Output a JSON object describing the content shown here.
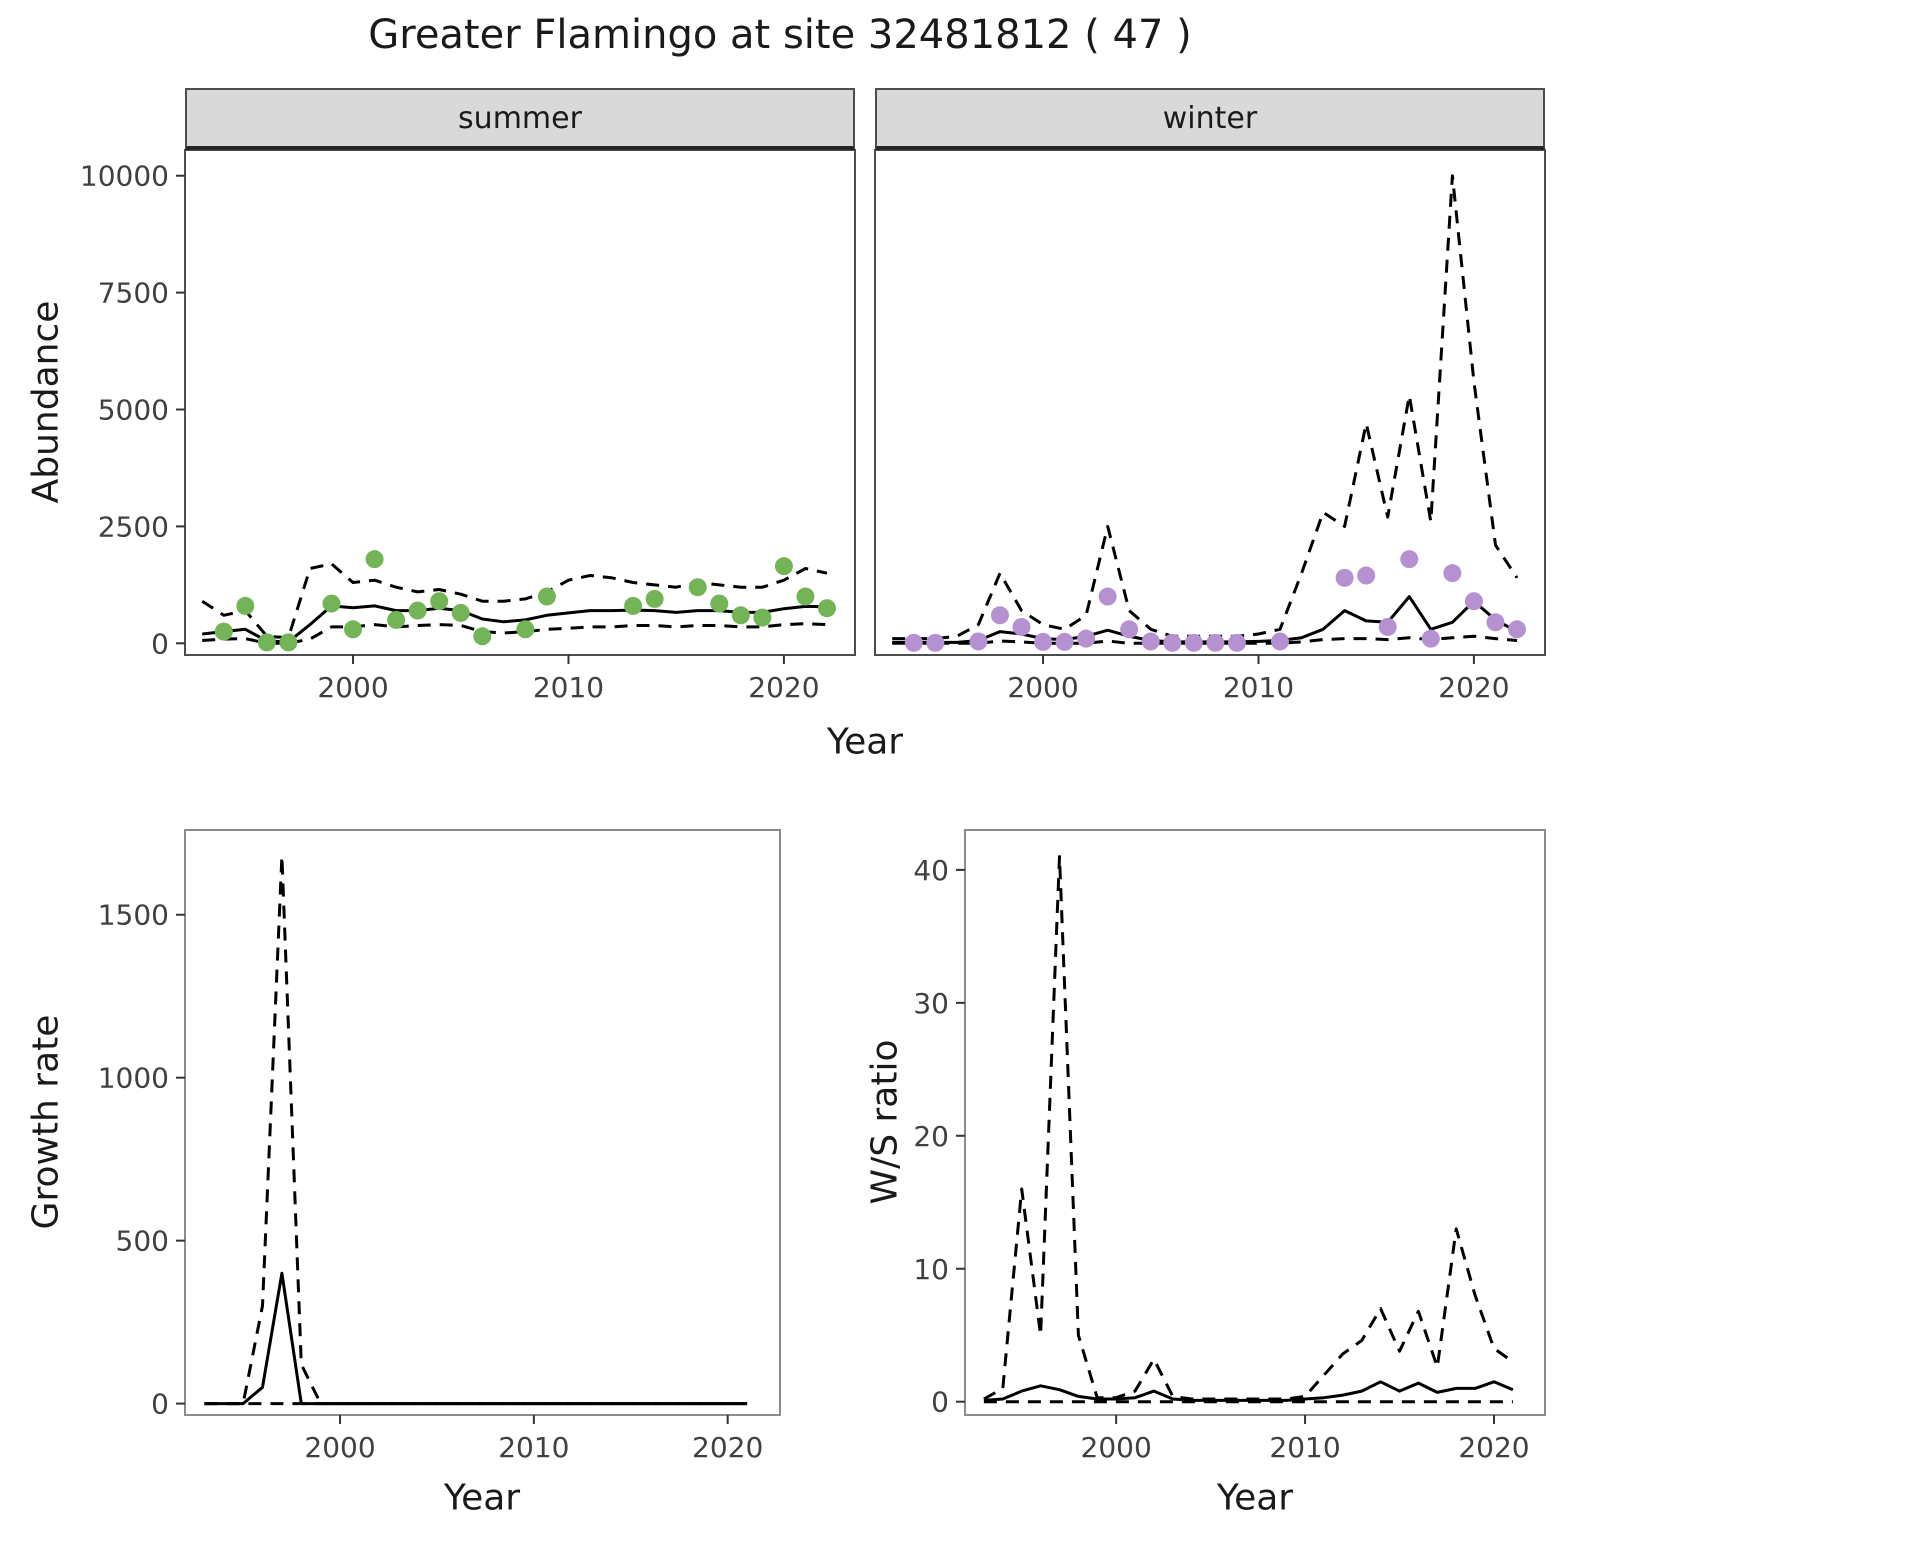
{
  "chart_data": {
    "type": "line",
    "title": "Greater Flamingo at site 32481812 ( 47 )",
    "facets": {
      "summer": "summer",
      "winter": "winter"
    },
    "axis_labels": {
      "abundance": "Abundance",
      "year": "Year",
      "growth": "Growth rate",
      "ws": "W/S ratio"
    },
    "colors": {
      "summer_points": "#72b456",
      "winter_points": "#b691d2",
      "line": "#000000",
      "strip_background": "#d9d9d9"
    },
    "panels": [
      {
        "id": "abundance_summer",
        "facet": "summer",
        "xlabel": "Year",
        "ylabel": "Abundance",
        "xlim": [
          1992.2,
          2023.3
        ],
        "ylim": [
          -250,
          10550
        ],
        "xticks": [
          2000,
          2010,
          2020
        ],
        "yticks": [
          0,
          2500,
          5000,
          7500,
          10000
        ],
        "series": [
          {
            "name": "lower_ci",
            "style": "dashed",
            "x": [
              1993,
              1994,
              1995,
              1996,
              1997,
              1998,
              1999,
              2000,
              2001,
              2002,
              2003,
              2004,
              2005,
              2006,
              2007,
              2008,
              2009,
              2010,
              2011,
              2012,
              2013,
              2014,
              2015,
              2016,
              2017,
              2018,
              2019,
              2020,
              2021,
              2022
            ],
            "y": [
              60,
              90,
              100,
              0,
              0,
              90,
              350,
              350,
              400,
              350,
              380,
              400,
              380,
              250,
              220,
              250,
              300,
              320,
              350,
              350,
              380,
              380,
              350,
              380,
              380,
              350,
              350,
              400,
              420,
              400
            ]
          },
          {
            "name": "upper_ci",
            "style": "dashed",
            "x": [
              1993,
              1994,
              1995,
              1996,
              1997,
              1998,
              1999,
              2000,
              2001,
              2002,
              2003,
              2004,
              2005,
              2006,
              2007,
              2008,
              2009,
              2010,
              2011,
              2012,
              2013,
              2014,
              2015,
              2016,
              2017,
              2018,
              2019,
              2020,
              2021,
              2022
            ],
            "y": [
              900,
              600,
              700,
              150,
              120,
              1600,
              1700,
              1300,
              1350,
              1200,
              1100,
              1150,
              1050,
              900,
              900,
              950,
              1100,
              1350,
              1450,
              1400,
              1300,
              1250,
              1200,
              1300,
              1250,
              1200,
              1200,
              1350,
              1600,
              1500
            ]
          },
          {
            "name": "model_fit",
            "style": "solid",
            "x": [
              1993,
              1994,
              1995,
              1996,
              1997,
              1998,
              1999,
              2000,
              2001,
              2002,
              2003,
              2004,
              2005,
              2006,
              2007,
              2008,
              2009,
              2010,
              2011,
              2012,
              2013,
              2014,
              2015,
              2016,
              2017,
              2018,
              2019,
              2020,
              2021,
              2022
            ],
            "y": [
              200,
              250,
              300,
              50,
              30,
              400,
              800,
              760,
              800,
              700,
              700,
              750,
              700,
              520,
              460,
              500,
              600,
              650,
              700,
              700,
              710,
              700,
              660,
              700,
              700,
              660,
              660,
              740,
              790,
              780
            ]
          },
          {
            "name": "observed_counts",
            "style": "points",
            "color": "#72b456",
            "x": [
              1994,
              1995,
              1996,
              1997,
              1999,
              2000,
              2001,
              2002,
              2003,
              2004,
              2005,
              2006,
              2008,
              2009,
              2013,
              2014,
              2016,
              2017,
              2018,
              2019,
              2020,
              2021,
              2022
            ],
            "y": [
              250,
              800,
              20,
              20,
              850,
              300,
              1800,
              500,
              700,
              900,
              650,
              150,
              300,
              1000,
              800,
              950,
              1200,
              850,
              600,
              550,
              1650,
              1000,
              750
            ]
          }
        ]
      },
      {
        "id": "abundance_winter",
        "facet": "winter",
        "xlabel": "Year",
        "ylabel": "Abundance",
        "xlim": [
          1992.2,
          2023.3
        ],
        "ylim": [
          -250,
          10550
        ],
        "xticks": [
          2000,
          2010,
          2020
        ],
        "yticks": [
          0,
          2500,
          5000,
          7500,
          10000
        ],
        "series": [
          {
            "name": "lower_ci",
            "style": "dashed",
            "x": [
              1993,
              1994,
              1995,
              1996,
              1997,
              1998,
              1999,
              2000,
              2001,
              2002,
              2003,
              2004,
              2005,
              2006,
              2007,
              2008,
              2009,
              2010,
              2011,
              2012,
              2013,
              2014,
              2015,
              2016,
              2017,
              2018,
              2019,
              2020,
              2021,
              2022
            ],
            "y": [
              0,
              0,
              0,
              0,
              0,
              50,
              30,
              0,
              0,
              0,
              50,
              0,
              0,
              0,
              0,
              0,
              0,
              0,
              0,
              30,
              80,
              100,
              100,
              80,
              120,
              80,
              120,
              150,
              100,
              60
            ]
          },
          {
            "name": "upper_ci",
            "style": "dashed",
            "x": [
              1993,
              1994,
              1995,
              1996,
              1997,
              1998,
              1999,
              2000,
              2001,
              2002,
              2003,
              2004,
              2005,
              2006,
              2007,
              2008,
              2009,
              2010,
              2011,
              2012,
              2013,
              2014,
              2015,
              2016,
              2017,
              2018,
              2019,
              2020,
              2021,
              2022
            ],
            "y": [
              100,
              100,
              100,
              150,
              400,
              1500,
              700,
              400,
              300,
              600,
              2500,
              700,
              300,
              150,
              150,
              150,
              150,
              200,
              300,
              1500,
              2800,
              2500,
              4700,
              2700,
              5300,
              2600,
              10000,
              5600,
              2100,
              1400
            ]
          },
          {
            "name": "model_fit",
            "style": "solid",
            "x": [
              1993,
              1994,
              1995,
              1996,
              1997,
              1998,
              1999,
              2000,
              2001,
              2002,
              2003,
              2004,
              2005,
              2006,
              2007,
              2008,
              2009,
              2010,
              2011,
              2012,
              2013,
              2014,
              2015,
              2016,
              2017,
              2018,
              2019,
              2020,
              2021,
              2022
            ],
            "y": [
              20,
              20,
              20,
              20,
              60,
              250,
              200,
              100,
              80,
              150,
              280,
              150,
              60,
              30,
              30,
              30,
              30,
              40,
              60,
              120,
              300,
              700,
              480,
              450,
              1000,
              300,
              450,
              900,
              500,
              250
            ]
          },
          {
            "name": "observed_counts",
            "style": "points",
            "color": "#b691d2",
            "x": [
              1994,
              1995,
              1997,
              1998,
              1999,
              2000,
              2001,
              2002,
              2003,
              2004,
              2005,
              2006,
              2007,
              2008,
              2009,
              2011,
              2014,
              2015,
              2016,
              2017,
              2018,
              2019,
              2020,
              2021,
              2022
            ],
            "y": [
              10,
              10,
              40,
              600,
              350,
              30,
              30,
              100,
              1000,
              300,
              40,
              10,
              10,
              10,
              10,
              40,
              1400,
              1450,
              350,
              1800,
              100,
              1500,
              900,
              450,
              300
            ]
          }
        ]
      },
      {
        "id": "growth_rate",
        "facet": null,
        "xlabel": "Year",
        "ylabel": "Growth rate",
        "xlim": [
          1992.0,
          2022.7
        ],
        "ylim": [
          -35,
          1760
        ],
        "xticks": [
          2000,
          2010,
          2020
        ],
        "yticks": [
          0,
          500,
          1000,
          1500
        ],
        "series": [
          {
            "name": "lower_ci",
            "style": "dashed",
            "x": [
              1993,
              1994,
              1995,
              1996,
              1997,
              1998,
              1999,
              2000,
              2001,
              2002,
              2003,
              2004,
              2005,
              2006,
              2007,
              2008,
              2009,
              2010,
              2011,
              2012,
              2013,
              2014,
              2015,
              2016,
              2017,
              2018,
              2019,
              2020,
              2021
            ],
            "y": [
              0,
              0,
              0,
              0,
              0,
              0,
              0,
              0,
              0,
              0,
              0,
              0,
              0,
              0,
              0,
              0,
              0,
              0,
              0,
              0,
              0,
              0,
              0,
              0,
              0,
              0,
              0,
              0,
              0
            ]
          },
          {
            "name": "upper_ci",
            "style": "dashed",
            "x": [
              1993,
              1994,
              1995,
              1996,
              1997,
              1998,
              1999,
              2000,
              2001,
              2002,
              2003,
              2004,
              2005,
              2006,
              2007,
              2008,
              2009,
              2010,
              2011,
              2012,
              2013,
              2014,
              2015,
              2016,
              2017,
              2018,
              2019,
              2020,
              2021
            ],
            "y": [
              0,
              0,
              0,
              300,
              1680,
              120,
              0,
              0,
              0,
              0,
              0,
              0,
              0,
              0,
              0,
              0,
              0,
              0,
              0,
              0,
              0,
              0,
              0,
              0,
              0,
              0,
              0,
              0,
              0
            ]
          },
          {
            "name": "model_fit",
            "style": "solid",
            "x": [
              1993,
              1994,
              1995,
              1996,
              1997,
              1998,
              1999,
              2000,
              2001,
              2002,
              2003,
              2004,
              2005,
              2006,
              2007,
              2008,
              2009,
              2010,
              2011,
              2012,
              2013,
              2014,
              2015,
              2016,
              2017,
              2018,
              2019,
              2020,
              2021
            ],
            "y": [
              0,
              0,
              0,
              50,
              400,
              0,
              0,
              0,
              0,
              0,
              0,
              0,
              0,
              0,
              0,
              0,
              0,
              0,
              0,
              0,
              0,
              0,
              0,
              0,
              0,
              0,
              0,
              0,
              0
            ]
          }
        ]
      },
      {
        "id": "ws_ratio",
        "facet": null,
        "xlabel": "Year",
        "ylabel": "W/S ratio",
        "xlim": [
          1992.0,
          2022.7
        ],
        "ylim": [
          -1,
          43
        ],
        "xticks": [
          2000,
          2010,
          2020
        ],
        "yticks": [
          0,
          10,
          20,
          30,
          40
        ],
        "series": [
          {
            "name": "lower_ci",
            "style": "dashed",
            "x": [
              1993,
              1994,
              1995,
              1996,
              1997,
              1998,
              1999,
              2000,
              2001,
              2002,
              2003,
              2004,
              2005,
              2006,
              2007,
              2008,
              2009,
              2010,
              2011,
              2012,
              2013,
              2014,
              2015,
              2016,
              2017,
              2018,
              2019,
              2020,
              2021
            ],
            "y": [
              0,
              0,
              0,
              0,
              0,
              0,
              0,
              0,
              0,
              0,
              0,
              0,
              0,
              0,
              0,
              0,
              0,
              0,
              0,
              0,
              0,
              0,
              0,
              0,
              0,
              0,
              0,
              0,
              0
            ]
          },
          {
            "name": "upper_ci",
            "style": "dashed",
            "x": [
              1993,
              1994,
              1995,
              1996,
              1997,
              1998,
              1999,
              2000,
              2001,
              2002,
              2003,
              2004,
              2005,
              2006,
              2007,
              2008,
              2009,
              2010,
              2011,
              2012,
              2013,
              2014,
              2015,
              2016,
              2017,
              2018,
              2019,
              2020,
              2021
            ],
            "y": [
              0.2,
              1,
              16,
              5,
              41,
              5,
              0.3,
              0.3,
              0.8,
              3.2,
              0.4,
              0.2,
              0.2,
              0.2,
              0.2,
              0.2,
              0.2,
              0.4,
              2,
              3.6,
              4.6,
              7,
              3.8,
              6.8,
              2.6,
              13,
              8,
              4,
              3
            ]
          },
          {
            "name": "model_fit",
            "style": "solid",
            "x": [
              1993,
              1994,
              1995,
              1996,
              1997,
              1998,
              1999,
              2000,
              2001,
              2002,
              2003,
              2004,
              2005,
              2006,
              2007,
              2008,
              2009,
              2010,
              2011,
              2012,
              2013,
              2014,
              2015,
              2016,
              2017,
              2018,
              2019,
              2020,
              2021
            ],
            "y": [
              0.1,
              0.2,
              0.8,
              1.2,
              0.9,
              0.4,
              0.2,
              0.2,
              0.3,
              0.8,
              0.2,
              0.1,
              0.1,
              0.1,
              0.1,
              0.1,
              0.1,
              0.2,
              0.3,
              0.5,
              0.8,
              1.5,
              0.8,
              1.4,
              0.7,
              1.0,
              1.0,
              1.5,
              0.9
            ]
          }
        ]
      }
    ]
  }
}
